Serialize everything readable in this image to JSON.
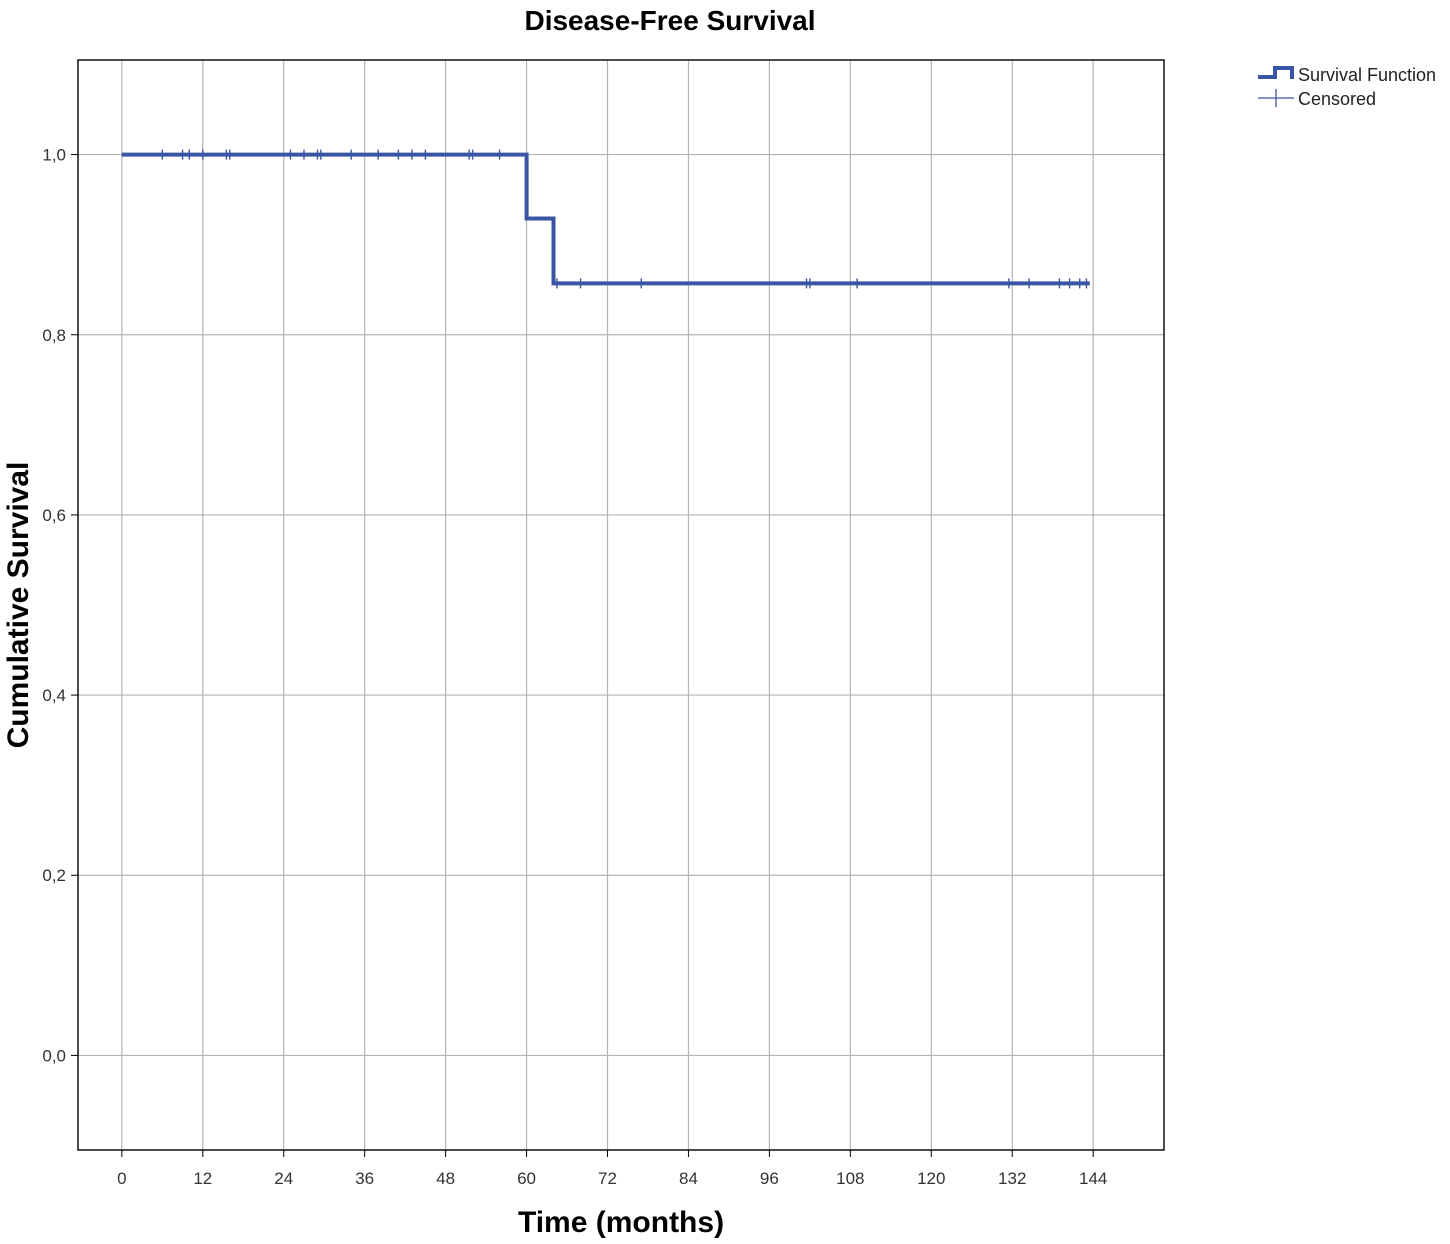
{
  "chart_data": {
    "type": "line",
    "title": "Disease-Free Survival",
    "xlabel": "Time (months)",
    "ylabel": "Cumulative Survival",
    "xlim": [
      -6.5,
      154.5
    ],
    "ylim": [
      -0.105,
      1.105
    ],
    "x_ticks": [
      0,
      12,
      24,
      36,
      48,
      60,
      72,
      84,
      96,
      108,
      120,
      132,
      144
    ],
    "x_tick_labels": [
      "0",
      "12",
      "24",
      "36",
      "48",
      "60",
      "72",
      "84",
      "96",
      "108",
      "120",
      "132",
      "144"
    ],
    "y_ticks": [
      0,
      0.2,
      0.4,
      0.6,
      0.8,
      1.0
    ],
    "y_tick_labels": [
      "0,0",
      "0,2",
      "0,4",
      "0,6",
      "0,8",
      "1,0"
    ],
    "grid": true,
    "legend_position": "top-right, outside plot",
    "colors": {
      "series": "#3a55a4",
      "grid": "#b4b4b4",
      "frame": "#000000"
    },
    "series": [
      {
        "name": "Survival Function",
        "step": true,
        "x": [
          0,
          60,
          60,
          64,
          64,
          143.5
        ],
        "y": [
          1.0,
          1.0,
          0.929,
          0.929,
          0.857,
          0.857
        ]
      }
    ],
    "censored": {
      "name": "Censored",
      "points": [
        {
          "x": 6,
          "y": 1.0
        },
        {
          "x": 9,
          "y": 1.0
        },
        {
          "x": 10,
          "y": 1.0
        },
        {
          "x": 12,
          "y": 1.0
        },
        {
          "x": 15.5,
          "y": 1.0
        },
        {
          "x": 16,
          "y": 1.0
        },
        {
          "x": 25,
          "y": 1.0
        },
        {
          "x": 27,
          "y": 1.0
        },
        {
          "x": 29,
          "y": 1.0
        },
        {
          "x": 29.5,
          "y": 1.0
        },
        {
          "x": 34,
          "y": 1.0
        },
        {
          "x": 38,
          "y": 1.0
        },
        {
          "x": 41,
          "y": 1.0
        },
        {
          "x": 43,
          "y": 1.0
        },
        {
          "x": 45,
          "y": 1.0
        },
        {
          "x": 51.5,
          "y": 1.0
        },
        {
          "x": 52,
          "y": 1.0
        },
        {
          "x": 56,
          "y": 1.0
        },
        {
          "x": 64.5,
          "y": 0.857
        },
        {
          "x": 68,
          "y": 0.857
        },
        {
          "x": 77,
          "y": 0.857
        },
        {
          "x": 101.5,
          "y": 0.857
        },
        {
          "x": 102,
          "y": 0.857
        },
        {
          "x": 109,
          "y": 0.857
        },
        {
          "x": 131.5,
          "y": 0.857
        },
        {
          "x": 134.5,
          "y": 0.857
        },
        {
          "x": 139,
          "y": 0.857
        },
        {
          "x": 140.5,
          "y": 0.857
        },
        {
          "x": 142,
          "y": 0.857
        },
        {
          "x": 143,
          "y": 0.857
        }
      ]
    }
  }
}
